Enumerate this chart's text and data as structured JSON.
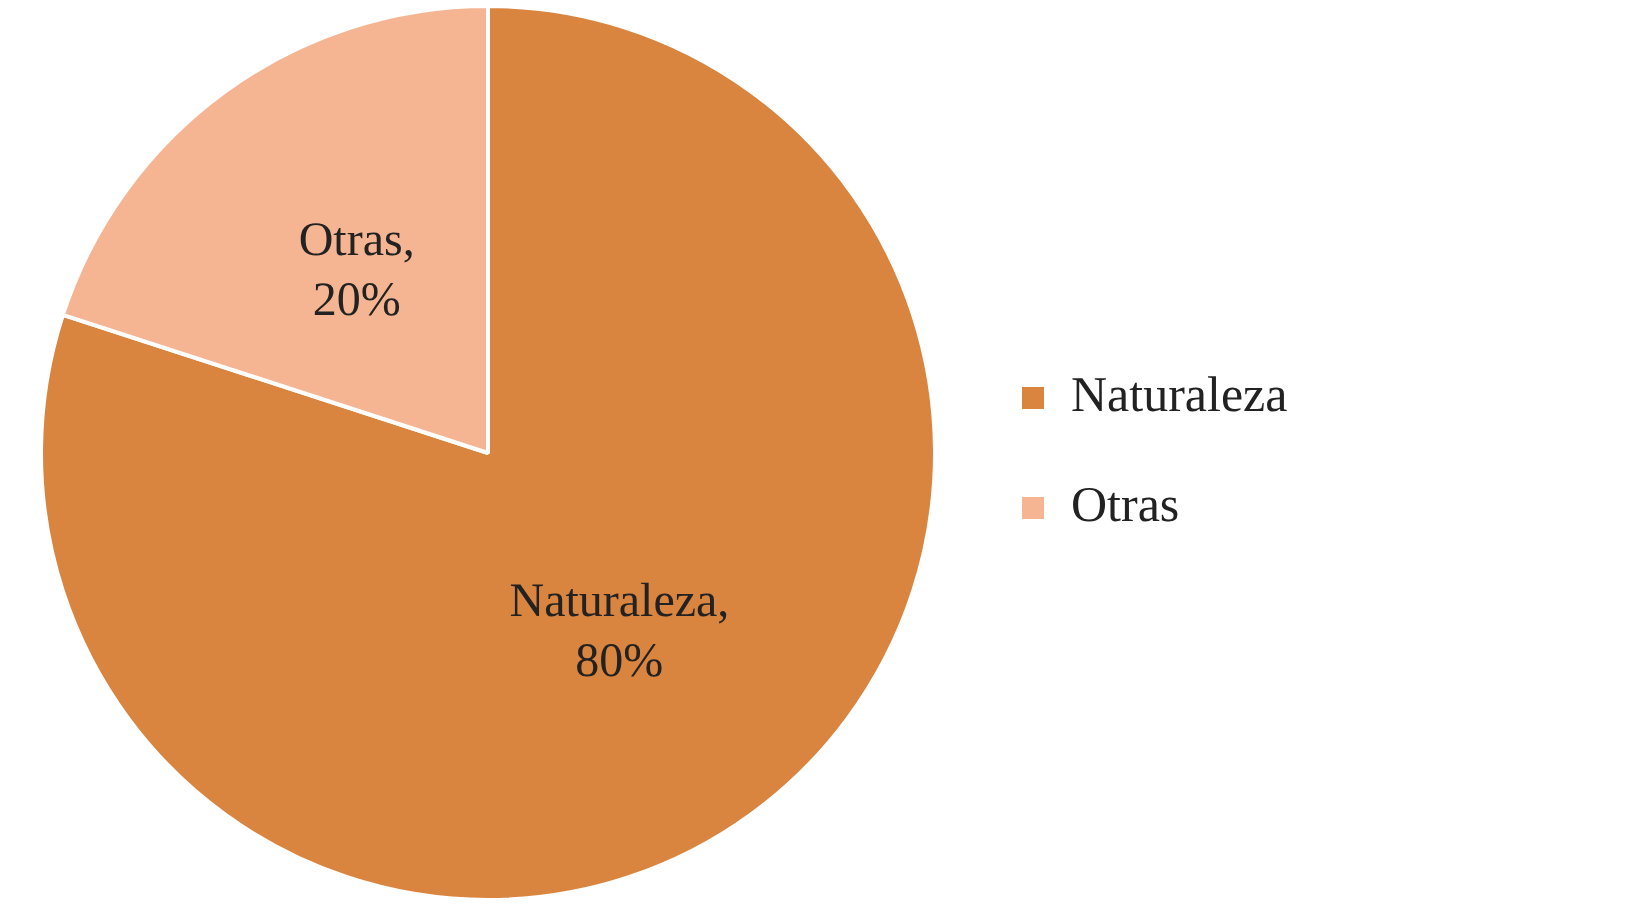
{
  "chart_data": {
    "type": "pie",
    "categories": [
      "Naturaleza",
      "Otras"
    ],
    "values": [
      80,
      20
    ],
    "colors": [
      "#d9843f",
      "#f5b592"
    ],
    "value_labels": [
      "Naturaleza, 80%",
      "Otras, 20%"
    ],
    "legend": "right"
  }
}
